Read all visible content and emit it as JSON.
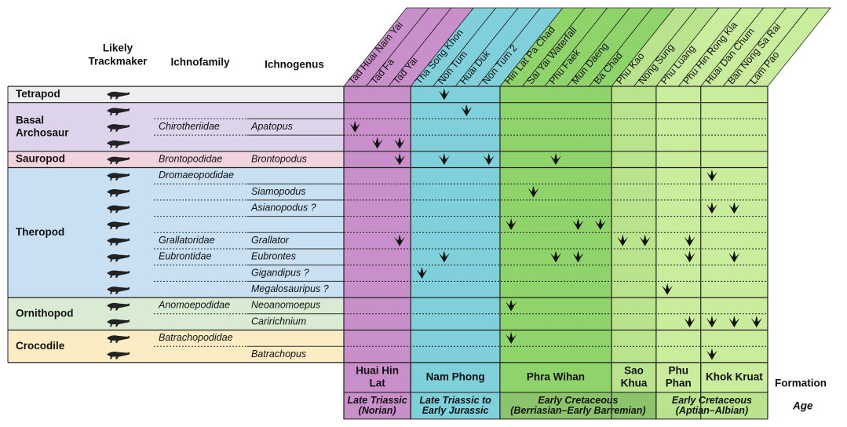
{
  "header": {
    "trackmaker": [
      "Likely",
      "Trackmaker"
    ],
    "ichnofamily": "Ichnofamily",
    "ichnogenus": "Ichnogenus"
  },
  "groups": [
    {
      "name": [
        "Tetrapod"
      ],
      "color": "#eeeeee",
      "rows": [
        {}
      ]
    },
    {
      "name": [
        "Basal",
        "Archosaur"
      ],
      "color": "#ddd3ea",
      "rows": [
        {},
        {
          "ichnofamily": "Chirotheriidae",
          "ichnogenus": "Apatopus"
        },
        {}
      ]
    },
    {
      "name": [
        "Sauropod"
      ],
      "color": "#f1d3dd",
      "rows": [
        {
          "ichnofamily": "Brontopodidae",
          "ichnogenus": "Brontopodus"
        }
      ]
    },
    {
      "name": [
        "Theropod"
      ],
      "color": "#c9dff2",
      "rows": [
        {
          "ichnofamily": "Dromaeopodidae"
        },
        {
          "ichnogenus": "Siamopodus"
        },
        {
          "ichnogenus": "Asianopodus ?"
        },
        {},
        {
          "ichnofamily": "Grallatoridae",
          "ichnogenus": "Grallator"
        },
        {
          "ichnofamily": "Eubrontidae",
          "ichnogenus": "Eubrontes"
        },
        {
          "ichnogenus": "Gigandipus ?"
        },
        {
          "ichnogenus": "Megalosauripus ?"
        }
      ]
    },
    {
      "name": [
        "Ornithopod"
      ],
      "color": "#d9ecd3",
      "rows": [
        {
          "ichnofamily": "Anomoepodidae",
          "ichnogenus": "Neoanomoepus"
        },
        {
          "ichnogenus": "Caririchnium"
        }
      ]
    },
    {
      "name": [
        "Crocodile"
      ],
      "color": "#fcecc4",
      "rows": [
        {
          "ichnofamily": "Batrachopodidae"
        },
        {
          "ichnogenus": "Batrachopus"
        }
      ]
    }
  ],
  "formations": [
    {
      "name": [
        "Huai Hin",
        "Lat"
      ],
      "color": "#c98fca",
      "sites": [
        "Tad Huai Nam Yai",
        "Tad Fa",
        "Tad Yai"
      ]
    },
    {
      "name": [
        "Nam Phong"
      ],
      "color": "#7fd0da",
      "sites": [
        "Tha Song Khon",
        "Non Tum",
        "Huai Duk",
        "Non Tum 2"
      ]
    },
    {
      "name": [
        "Phra Wihan"
      ],
      "color": "#8fd46b",
      "sites": [
        "Hin Lat Pa Chad",
        "Sai Yai Waterfall",
        "Phu Faek",
        "Mun Daeng",
        "Ba Chad"
      ]
    },
    {
      "name": [
        "Sao",
        "Khua"
      ],
      "color": "#b9e48d",
      "sites": [
        "Phu Kao",
        "Nong Sung"
      ]
    },
    {
      "name": [
        "Phu",
        "Phan"
      ],
      "color": "#c9ec9d",
      "sites": [
        "Phu Luang",
        "Phu Hin Rong Kla"
      ]
    },
    {
      "name": [
        "Khok Kruat"
      ],
      "color": "#c9ec9d",
      "sites": [
        "Huai Dan Chum",
        "Ban Nong Sa Rai",
        "Lam Pao"
      ]
    }
  ],
  "ages": [
    {
      "lines": [
        "Late Triassic",
        "(Norian)"
      ],
      "color": "#c98fca"
    },
    {
      "lines": [
        "Late Triassic to",
        "Early Jurassic"
      ],
      "color": "#7fd0da"
    },
    {
      "lines": [
        "Early Cretaceous",
        "(Berriasian–Early Barremian)"
      ],
      "color": "#8cc46b"
    },
    {
      "lines": [
        "Early Cretaceous",
        "(Aptian–Albian)"
      ],
      "color": "#b9e48d"
    }
  ],
  "formation_label": "Formation",
  "age_label": "Age"
}
